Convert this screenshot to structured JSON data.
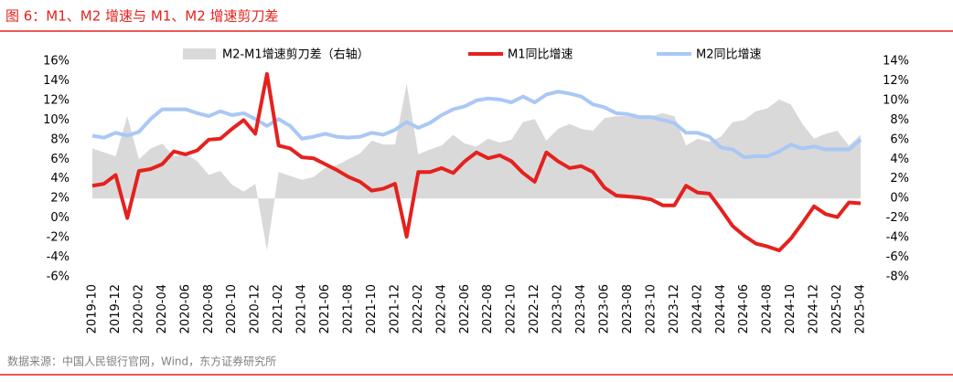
{
  "chart_data": {
    "type": "combo",
    "title": "图 6：M1、M2 增速与 M1、M2 增速剪刀差",
    "source": "数据来源：中国人民银行官网，Wind，东方证券研究所",
    "categories": [
      "2019-10",
      null,
      "2019-12",
      null,
      "2020-02",
      null,
      "2020-04",
      null,
      "2020-06",
      null,
      "2020-08",
      null,
      "2020-10",
      null,
      "2020-12",
      null,
      "2021-02",
      null,
      "2021-04",
      null,
      "2021-06",
      null,
      "2021-08",
      null,
      "2021-10",
      null,
      "2021-12",
      null,
      "2022-02",
      null,
      "2022-04",
      null,
      "2022-06",
      null,
      "2022-08",
      null,
      "2022-10",
      null,
      "2022-12",
      null,
      "2023-02",
      null,
      "2023-04",
      null,
      "2023-06",
      null,
      "2023-08",
      null,
      "2023-10",
      null,
      "2023-12",
      null,
      "2024-02",
      null,
      "2024-04",
      null,
      "2024-06",
      null,
      "2024-08",
      null,
      "2024-10",
      null,
      "2024-12",
      null,
      "2025-02",
      null,
      "2025-04"
    ],
    "series": [
      {
        "name": "M2-M1增速剪刀差（右轴）",
        "type": "area",
        "axis": "y2",
        "color": "#d9d9d9",
        "values": [
          5.1,
          4.7,
          4.3,
          8.4,
          4.0,
          5.1,
          5.6,
          4.3,
          4.6,
          3.8,
          2.4,
          2.8,
          1.4,
          0.7,
          1.5,
          -5.3,
          2.7,
          2.3,
          1.9,
          2.2,
          3.1,
          3.4,
          4.0,
          4.6,
          5.9,
          5.5,
          5.5,
          11.7,
          4.5,
          5.0,
          5.4,
          6.5,
          5.6,
          5.3,
          6.1,
          5.7,
          6.0,
          7.8,
          8.1,
          5.9,
          7.1,
          7.6,
          7.1,
          6.9,
          8.2,
          8.4,
          8.4,
          8.2,
          8.4,
          8.7,
          8.4,
          5.4,
          6.1,
          5.8,
          6.3,
          7.8,
          8.0,
          8.9,
          9.2,
          10.1,
          9.6,
          7.6,
          6.1,
          6.6,
          6.9,
          5.4,
          6.5
        ]
      },
      {
        "name": "M1同比增速",
        "type": "line",
        "color": "#e5211e",
        "values": [
          3.3,
          3.5,
          4.4,
          0.0,
          4.8,
          5.0,
          5.5,
          6.8,
          6.5,
          6.9,
          8.0,
          8.1,
          9.1,
          10.0,
          8.6,
          14.7,
          7.4,
          7.1,
          6.2,
          6.1,
          5.5,
          4.9,
          4.2,
          3.7,
          2.8,
          3.0,
          3.5,
          -1.9,
          4.7,
          4.7,
          5.1,
          4.6,
          5.8,
          6.7,
          6.1,
          6.4,
          5.8,
          4.6,
          3.7,
          6.7,
          5.8,
          5.1,
          5.3,
          4.7,
          3.1,
          2.3,
          2.2,
          2.1,
          1.9,
          1.3,
          1.3,
          3.3,
          2.6,
          2.5,
          0.9,
          -0.8,
          -1.8,
          -2.6,
          -2.9,
          -3.3,
          -2.1,
          -0.5,
          1.2,
          0.4,
          0.1,
          1.6,
          1.5
        ]
      },
      {
        "name": "M2同比增速",
        "type": "line",
        "color": "#a9c8f5",
        "values": [
          8.4,
          8.2,
          8.7,
          8.4,
          8.8,
          10.1,
          11.1,
          11.1,
          11.1,
          10.7,
          10.4,
          10.9,
          10.5,
          10.7,
          10.1,
          9.4,
          10.1,
          9.4,
          8.1,
          8.3,
          8.6,
          8.3,
          8.2,
          8.3,
          8.7,
          8.5,
          9.0,
          9.8,
          9.2,
          9.7,
          10.5,
          11.1,
          11.4,
          12.0,
          12.2,
          12.1,
          11.8,
          12.4,
          11.8,
          12.6,
          12.9,
          12.7,
          12.4,
          11.6,
          11.3,
          10.7,
          10.6,
          10.3,
          10.3,
          10.0,
          9.7,
          8.7,
          8.7,
          8.3,
          7.2,
          7.0,
          6.2,
          6.3,
          6.3,
          6.8,
          7.5,
          7.1,
          7.3,
          7.0,
          7.0,
          7.0,
          8.0
        ]
      }
    ],
    "ylim": [
      -6,
      16
    ],
    "yticks": [
      {
        "value": -6,
        "label": "-6%"
      },
      {
        "value": -4,
        "label": "-4%"
      },
      {
        "value": -2,
        "label": "-2%"
      },
      {
        "value": 0,
        "label": "0%"
      },
      {
        "value": 2,
        "label": "2%"
      },
      {
        "value": 4,
        "label": "4%"
      },
      {
        "value": 6,
        "label": "6%"
      },
      {
        "value": 8,
        "label": "8%"
      },
      {
        "value": 10,
        "label": "10%"
      },
      {
        "value": 12,
        "label": "12%"
      },
      {
        "value": 14,
        "label": "14%"
      },
      {
        "value": 16,
        "label": "16%"
      }
    ],
    "y2lim": [
      -8,
      14
    ],
    "y2ticks": [
      {
        "value": -8,
        "label": "-8%"
      },
      {
        "value": -6,
        "label": "-6%"
      },
      {
        "value": -4,
        "label": "-4%"
      },
      {
        "value": -2,
        "label": "-2%"
      },
      {
        "value": 0,
        "label": "0%"
      },
      {
        "value": 2,
        "label": "2%"
      },
      {
        "value": 4,
        "label": "4%"
      },
      {
        "value": 6,
        "label": "6%"
      },
      {
        "value": 8,
        "label": "8%"
      },
      {
        "value": 10,
        "label": "10%"
      },
      {
        "value": 12,
        "label": "12%"
      },
      {
        "value": 14,
        "label": "14%"
      }
    ],
    "grid": false
  }
}
